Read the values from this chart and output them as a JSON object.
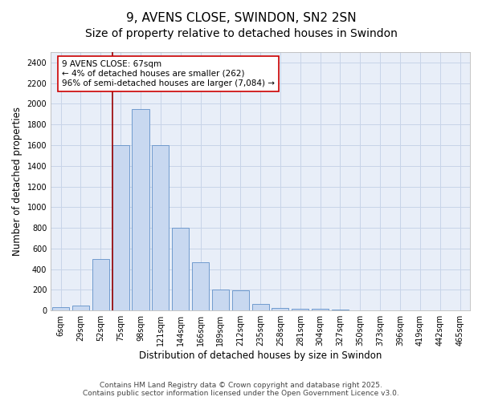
{
  "title": "9, AVENS CLOSE, SWINDON, SN2 2SN",
  "subtitle": "Size of property relative to detached houses in Swindon",
  "xlabel": "Distribution of detached houses by size in Swindon",
  "ylabel": "Number of detached properties",
  "categories": [
    "6sqm",
    "29sqm",
    "52sqm",
    "75sqm",
    "98sqm",
    "121sqm",
    "144sqm",
    "166sqm",
    "189sqm",
    "212sqm",
    "235sqm",
    "258sqm",
    "281sqm",
    "304sqm",
    "327sqm",
    "350sqm",
    "373sqm",
    "396sqm",
    "419sqm",
    "442sqm",
    "465sqm"
  ],
  "bar_heights": [
    30,
    50,
    500,
    1600,
    1950,
    1600,
    800,
    470,
    200,
    195,
    60,
    25,
    20,
    15,
    10,
    5,
    3,
    2,
    2,
    2,
    5
  ],
  "bar_color": "#c8d8f0",
  "bar_edgecolor": "#6090c8",
  "annotation_text": "9 AVENS CLOSE: 67sqm\n← 4% of detached houses are smaller (262)\n96% of semi-detached houses are larger (7,084) →",
  "annotation_box_edgecolor": "#cc0000",
  "vline_color": "#990000",
  "ylim": [
    0,
    2500
  ],
  "yticks": [
    0,
    200,
    400,
    600,
    800,
    1000,
    1200,
    1400,
    1600,
    1800,
    2000,
    2200,
    2400
  ],
  "grid_color": "#c8d4e8",
  "background_color": "#e8eef8",
  "footer_text": "Contains HM Land Registry data © Crown copyright and database right 2025.\nContains public sector information licensed under the Open Government Licence v3.0.",
  "title_fontsize": 11,
  "xlabel_fontsize": 8.5,
  "ylabel_fontsize": 8.5,
  "tick_fontsize": 7,
  "annotation_fontsize": 7.5,
  "footer_fontsize": 6.5
}
